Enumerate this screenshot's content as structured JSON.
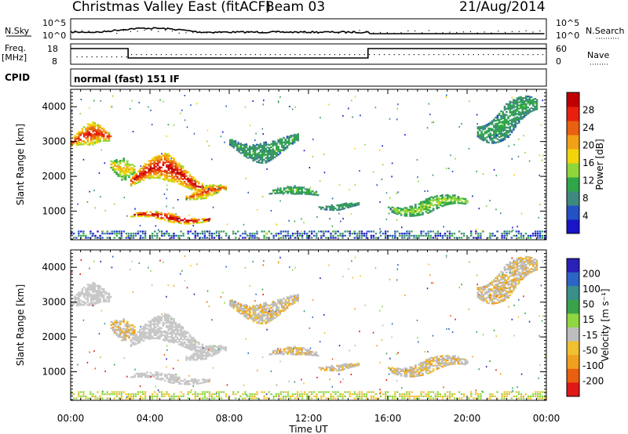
{
  "header": {
    "title": "Christmas Valley East (fitACF)",
    "beam": "Beam 03",
    "date": "21/Aug/2014"
  },
  "aux": {
    "nsky_label": "N.Sky",
    "nsearch_label": "N.Search",
    "freq_label_1": "Freq.",
    "freq_label_2": "[MHz]",
    "nave_label": "Nave",
    "cpid_label": "CPID",
    "cpid_text": "normal (fast) 151 IF",
    "nsky_ticks": [
      "10^5",
      "10^0"
    ],
    "nsearch_ticks": [
      "10^5",
      "10^0"
    ],
    "freq_ticks": [
      "18",
      "8"
    ],
    "nave_ticks": [
      "60",
      "0"
    ]
  },
  "colors": {
    "scale": [
      "#1a14c8",
      "#2452c4",
      "#3f8a7e",
      "#30a64a",
      "#8fd63a",
      "#f2d40a",
      "#f2a018",
      "#e86010",
      "#e82010",
      "#c00000"
    ],
    "vel_pos": [
      "#2a1fb6",
      "#2d65c4",
      "#3a8f8a",
      "#3aa24a",
      "#8fd640"
    ],
    "vel_neg": [
      "#bdbdbd",
      "#f0c030",
      "#f0a020",
      "#e86010",
      "#e01818"
    ],
    "ground": "#c8c8c8"
  },
  "chart_data": [
    {
      "type": "heatmap",
      "panel": "power",
      "ylabel": "Slant Range [km]",
      "xlabel": "Time UT",
      "x_ticks": [
        "00:00",
        "04:00",
        "08:00",
        "12:00",
        "16:00",
        "20:00",
        "00:00"
      ],
      "x_range": [
        0,
        24
      ],
      "y_ticks": [
        "1000",
        "2000",
        "3000",
        "4000"
      ],
      "ylim": [
        180,
        4500
      ],
      "colorbar": {
        "label": "Power [dB]",
        "ticks": [
          "4",
          "8",
          "12",
          "16",
          "20",
          "24",
          "28"
        ]
      },
      "features": [
        {
          "t0": 0.0,
          "t1": 2.0,
          "r0": 2400,
          "r1": 3500,
          "power": 22
        },
        {
          "t0": 2.0,
          "t1": 3.2,
          "r0": 1900,
          "r1": 3000,
          "power": 14
        },
        {
          "t0": 3.0,
          "t1": 6.6,
          "r0": 1300,
          "r1": 2600,
          "power": 24
        },
        {
          "t0": 3.0,
          "t1": 7.0,
          "r0": 600,
          "r1": 1000,
          "power": 26
        },
        {
          "t0": 5.8,
          "t1": 7.8,
          "r0": 1200,
          "r1": 1800,
          "power": 20
        },
        {
          "t0": 8.0,
          "t1": 11.5,
          "r0": 2400,
          "r1": 3400,
          "power": 6
        },
        {
          "t0": 10.0,
          "t1": 12.5,
          "r0": 1300,
          "r1": 1700,
          "power": 8
        },
        {
          "t0": 12.5,
          "t1": 14.5,
          "r0": 1000,
          "r1": 1300,
          "power": 6
        },
        {
          "t0": 16.0,
          "t1": 20.0,
          "r0": 800,
          "r1": 1500,
          "power": 10
        },
        {
          "t0": 20.5,
          "t1": 23.5,
          "r0": 2800,
          "r1": 4500,
          "power": 6
        }
      ]
    },
    {
      "type": "heatmap",
      "panel": "velocity",
      "ylabel": "Slant Range [km]",
      "xlabel": "Time UT",
      "x_ticks": [
        "00:00",
        "04:00",
        "08:00",
        "12:00",
        "16:00",
        "20:00",
        "00:00"
      ],
      "x_range": [
        0,
        24
      ],
      "y_ticks": [
        "1000",
        "2000",
        "3000",
        "4000"
      ],
      "ylim": [
        180,
        4500
      ],
      "colorbar": {
        "label": "Velocity [m s⁻¹]",
        "ticks": [
          "200",
          "100",
          "50",
          "15",
          "-15",
          "-50",
          "-100",
          "-200"
        ]
      }
    }
  ]
}
